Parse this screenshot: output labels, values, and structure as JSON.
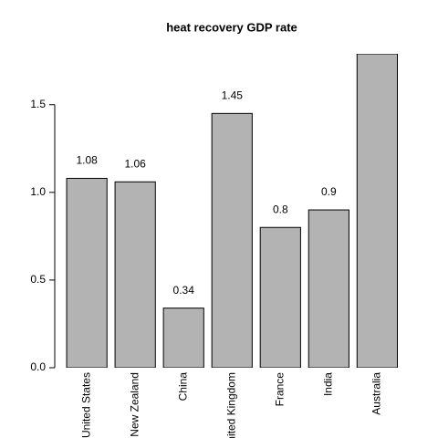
{
  "chart_data": {
    "type": "bar",
    "title": "heat recovery GDP rate",
    "categories": [
      "United States",
      "New Zealand",
      "China",
      "United Kingdom",
      "France",
      "India",
      "Australia"
    ],
    "values": [
      1.08,
      1.06,
      0.34,
      1.45,
      0.8,
      0.9,
      1.79
    ],
    "color": "#b3b3b3",
    "ylim": [
      0,
      1.79
    ],
    "yticks": [
      {
        "value": 0,
        "label": "0.0"
      },
      0.5,
      {
        "value": 1,
        "label": "1.0"
      },
      1.5
    ]
  }
}
